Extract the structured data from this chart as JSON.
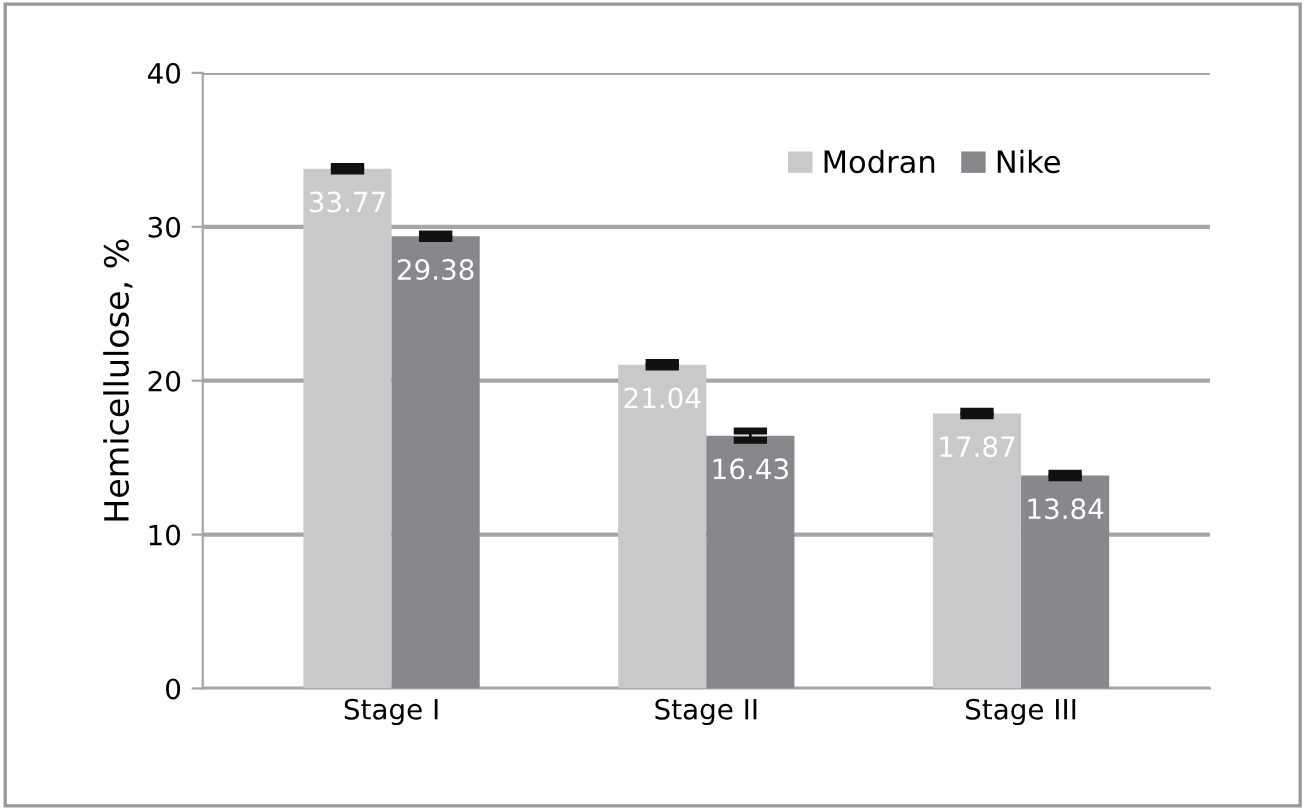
{
  "chart_data": {
    "type": "bar",
    "ylabel": "Hemicellulose, %",
    "categories": [
      "Stage I",
      "Stage II",
      "Stage III"
    ],
    "series": [
      {
        "name": "Modran",
        "color": "#c8c9cb",
        "values": [
          33.77,
          21.04,
          17.87
        ],
        "errors": [
          0.15,
          0.15,
          0.15
        ]
      },
      {
        "name": "Nike",
        "color": "#87888c",
        "values": [
          29.38,
          16.43,
          13.84
        ],
        "errors": [
          0.15,
          0.3,
          0.15
        ]
      }
    ],
    "ylim": [
      0,
      40
    ],
    "yticks": [
      0,
      10,
      20,
      30,
      40
    ],
    "grid": "y",
    "legend": "top right",
    "data_labels": true
  }
}
